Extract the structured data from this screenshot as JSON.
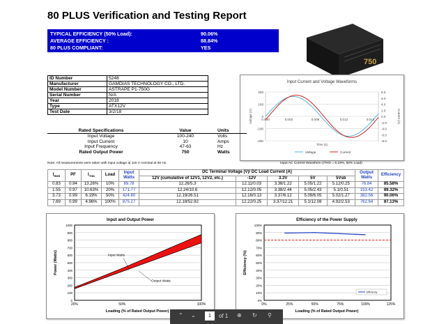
{
  "title": "80 PLUS Verification and Testing Report",
  "summary": [
    {
      "label": "TYPICAL EFFICIENCY (50% Load):",
      "value": "90.06%"
    },
    {
      "label": "AVERAGE EFFICIENCY :",
      "value": "88.84%"
    },
    {
      "label": "80 PLUS COMPLIANT:",
      "value": "YES"
    }
  ],
  "product_label": "750",
  "info": [
    {
      "k": "ID Number",
      "v": "5248"
    },
    {
      "k": "Manufacturer",
      "v": "GAMDIAS TECHNOLOGY CO., LTD."
    },
    {
      "k": "Model Number",
      "v": "ASTRAPE P1-750G"
    },
    {
      "k": "Serial Number",
      "v": "N/A"
    },
    {
      "k": "Year",
      "v": "2018"
    },
    {
      "k": "Type",
      "v": "ATX12V"
    },
    {
      "k": "Test Date",
      "v": "3/2/18"
    }
  ],
  "specs": {
    "headers": [
      "Rated Specifications",
      "Value",
      "Units"
    ],
    "rows": [
      [
        "Input Voltage",
        "100-240",
        "Volts"
      ],
      [
        "Input Current",
        "10",
        "Amps"
      ],
      [
        "Input Frequency",
        "47-63",
        "Hz"
      ],
      [
        "Rated Output Power",
        "750",
        "Watts"
      ]
    ]
  },
  "note": "Note: All measurements were taken with input voltage at 115 V nominal at 60 Hz.",
  "waveform_caption": "Input AC Current Waveform (ITHD = 6.19%, 50% Load)",
  "results": {
    "h1": [
      "IRMS",
      "PF",
      "ITHD",
      "Load",
      "Input Watts",
      "DC Terminal Voltage (V)/ DC Load Current (A)",
      "Output Watts",
      "Efficiency"
    ],
    "h2": [
      "12V (cumulative of 12V1, 12V2, etc.)",
      "-12V",
      "3.3V",
      "5V",
      "5Vsb"
    ],
    "rows": [
      [
        "0.83",
        "0.94",
        "13.26%",
        "10%",
        "89.78",
        "12.26/5.3",
        "12.11/0.03",
        "3.38/1.22",
        "5.05/1.22",
        "5.12/0.25",
        "76.84",
        "85.58%"
      ],
      [
        "1.55",
        "0.97",
        "10.63%",
        "20%",
        "171.77",
        "12.24/10.6",
        "12.12/0.05",
        "3.38/2.44",
        "5.05/2.43",
        "5.1/0.51",
        "153.42",
        "89.32%"
      ],
      [
        "3.73",
        "0.99",
        "6.19%",
        "50%",
        "424.80",
        "12.19/26.51",
        "12.16/0.13",
        "3.37/6.12",
        "5.09/6.05",
        "5.02/1.27",
        "382.56",
        "90.06%"
      ],
      [
        "7.69",
        "0.99",
        "4.96%",
        "100%",
        "875.27",
        "12.18/52.92",
        "12.22/0.25",
        "3.37/12.21",
        "5.1/12.08",
        "4.92/2.53",
        "762.64",
        "87.13%"
      ]
    ]
  },
  "chart_data": [
    {
      "type": "line",
      "title": "Input Current and Voltage Waveforms",
      "xlabel": "Time (s)",
      "ylabel": "Voltage (V)",
      "y2label": "Current (A)",
      "xlim": [
        0,
        0.017
      ],
      "ylim": [
        -200,
        200
      ],
      "y2lim": [
        -6,
        6
      ],
      "xticks": [
        "0.000",
        "0.003",
        "0.008",
        "0.012",
        "0.016"
      ],
      "yticks": [
        "200",
        "100",
        "0",
        "-100",
        "-200"
      ],
      "y2ticks": [
        "6.0",
        "4.0",
        "2.0",
        "0.0",
        "-2.0",
        "-4.0",
        "-6.0"
      ],
      "extra_y2ticks": [
        "8.0",
        "-8.0"
      ],
      "series": [
        {
          "name": "Voltage",
          "color": "#4fb8d8",
          "amplitude": 163,
          "phase": 0
        },
        {
          "name": "Current",
          "color": "#d02020",
          "amplitude": 5.2,
          "phase": 0.00045
        }
      ]
    },
    {
      "type": "area",
      "title": "Input and Output Power",
      "xlabel": "Loading (% of Rated Output Power)",
      "ylabel": "Power (Watts)",
      "xticks": [
        "20%",
        "50%",
        "100%"
      ],
      "yticks": [
        "1000",
        "900",
        "800",
        "700",
        "600",
        "500",
        "400",
        "300",
        "200",
        "100",
        "0"
      ],
      "ylim": [
        0,
        1000
      ],
      "x": [
        10,
        20,
        50,
        100
      ],
      "series": [
        {
          "name": "Input Watts",
          "values": [
            89.78,
            171.77,
            424.8,
            875.27
          ]
        },
        {
          "name": "Output Watts",
          "values": [
            76.84,
            153.42,
            382.56,
            762.64
          ]
        }
      ],
      "annotations": [
        "Input Watts",
        "Output Watts"
      ]
    },
    {
      "type": "line",
      "title": "Efficiency of the Power Supply",
      "xlabel": "Loading (% of Rated Output Power)",
      "ylabel": "Efficiency (%)",
      "xticks": [
        "0%",
        "25%",
        "50%",
        "75%",
        "100%",
        "125%"
      ],
      "yticks": [
        "100%",
        "90%",
        "80%",
        "70%",
        "60%",
        "50%",
        "40%",
        "30%",
        "20%",
        "10%",
        "0%"
      ],
      "xlim": [
        0,
        125
      ],
      "ylim": [
        0,
        100
      ],
      "x": [
        10,
        20,
        50,
        100
      ],
      "series": [
        {
          "name": "Efficiency",
          "values": [
            85.58,
            89.32,
            90.06,
            87.13
          ],
          "color": "#2040c0"
        }
      ],
      "reference_line": 80
    }
  ],
  "toolbar": {
    "page_value": "1",
    "of_label": "of 1"
  }
}
